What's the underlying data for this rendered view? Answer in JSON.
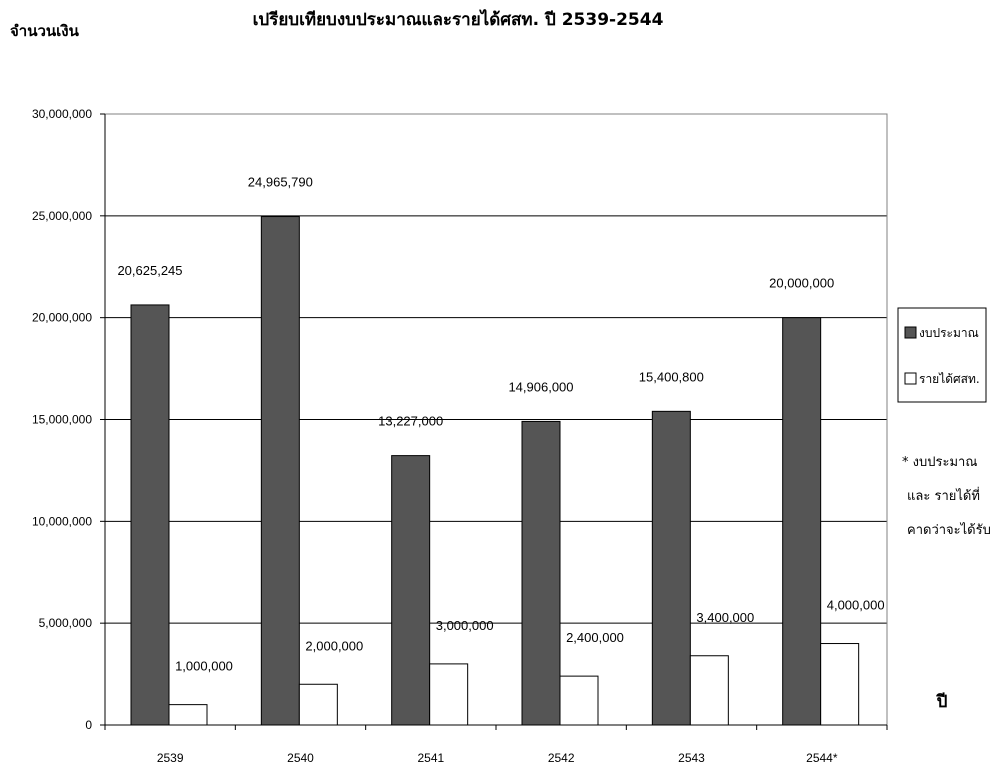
{
  "chart_data": {
    "type": "bar",
    "title": "เปรียบเทียบงบประมาณและรายได้ศสท. ปี 2539-2544",
    "ylabel": "จำนวนเงิน",
    "xlabel": "ปี",
    "categories": [
      "2539",
      "2540",
      "2541",
      "2542",
      "2543",
      "2544*"
    ],
    "series": [
      {
        "name": "งบประมาณ",
        "color": "#555555",
        "values": [
          20625245,
          24965790,
          13227000,
          14906000,
          15400800,
          20000000
        ],
        "labels": [
          "20,625,245",
          "24,965,790",
          "13,227,000",
          "14,906,000",
          "15,400,800",
          "20,000,000"
        ]
      },
      {
        "name": "รายได้ศสท.",
        "color": "#ffffff",
        "values": [
          1000000,
          2000000,
          3000000,
          2400000,
          3400000,
          4000000
        ],
        "labels": [
          "1,000,000",
          "2,000,000",
          "3,000,000",
          "2,400,000",
          "3,400,000",
          "4,000,000"
        ]
      }
    ],
    "ylim": [
      0,
      30000000
    ],
    "yticks": [
      0,
      5000000,
      10000000,
      15000000,
      20000000,
      25000000,
      30000000
    ],
    "ytick_labels": [
      "0",
      "5,000,000",
      "10,000,000",
      "15,000,000",
      "20,000,000",
      "25,000,000",
      "30,000,000"
    ],
    "grid": true,
    "legend": "right",
    "note": [
      "* งบประมาณ",
      "และ รายได้ที่",
      "คาดว่าจะได้รับ"
    ]
  }
}
